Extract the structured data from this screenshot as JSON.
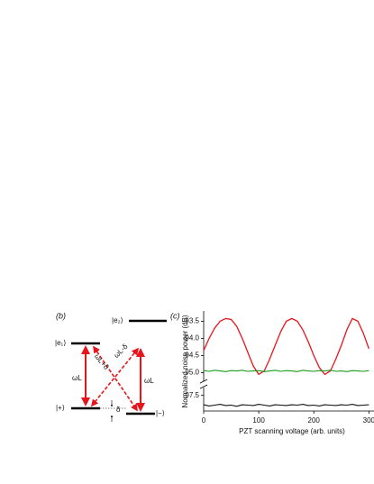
{
  "diagram": {
    "panel_label": "(b)",
    "levels": [
      "|e₂⟩",
      "|e₁⟩",
      "|+⟩",
      "|−⟩"
    ],
    "transitions": [
      "ωL+δ",
      "ωL-δ",
      "ωL",
      "ωL"
    ],
    "splitting": "δ"
  },
  "chart_data": [
    {
      "type": "line",
      "title": "(c)",
      "x": [
        0,
        10,
        20,
        30,
        40,
        50,
        60,
        70,
        80,
        90,
        100,
        110,
        120,
        130,
        140,
        150,
        160,
        170,
        180,
        190,
        200,
        210,
        220,
        230,
        240,
        250,
        260,
        270,
        280,
        290,
        300
      ],
      "ylim": [
        -95.25,
        -93.2
      ],
      "yticks": [
        -93.5,
        {
          "value": -94,
          "label": "-94.0"
        },
        -94.5,
        {
          "value": -95,
          "label": "-95.0"
        }
      ],
      "series": [
        {
          "color": "#e8141b",
          "values": [
            -94.35,
            -94.0,
            -93.7,
            -93.5,
            -93.42,
            -93.45,
            -93.65,
            -94.0,
            -94.4,
            -94.8,
            -95.05,
            -94.95,
            -94.6,
            -94.2,
            -93.8,
            -93.5,
            -93.42,
            -93.5,
            -93.75,
            -94.1,
            -94.5,
            -94.85,
            -95.05,
            -94.95,
            -94.6,
            -94.2,
            -93.75,
            -93.42,
            -93.5,
            -93.85,
            -94.3
          ]
        },
        {
          "color": "#1a9a1a",
          "values": [
            -94.94,
            -94.96,
            -94.93,
            -94.95,
            -94.97,
            -94.94,
            -94.95,
            -94.93,
            -94.96,
            -94.95,
            -94.94,
            -94.97,
            -94.95,
            -94.93,
            -94.96,
            -94.94,
            -94.95,
            -94.97,
            -94.93,
            -94.95,
            -94.96,
            -94.94,
            -94.95,
            -94.93,
            -94.96,
            -94.95,
            -94.97,
            -94.94,
            -94.95,
            -94.96,
            -94.94
          ]
        }
      ]
    },
    {
      "type": "line",
      "x": [
        0,
        10,
        20,
        30,
        40,
        50,
        60,
        70,
        80,
        90,
        100,
        110,
        120,
        130,
        140,
        150,
        160,
        170,
        180,
        190,
        200,
        210,
        220,
        230,
        240,
        250,
        260,
        270,
        280,
        290,
        300
      ],
      "xlim": [
        0,
        306
      ],
      "xticks": [
        0,
        100,
        200,
        300
      ],
      "ylim": [
        -97.9,
        -97.3
      ],
      "yticks": [
        -97.5
      ],
      "xlabel": "PZT scanning voltage (arb. units)",
      "ylabel": "Normalized noise power (dB)",
      "series": [
        {
          "color": "#111111",
          "values": [
            -97.74,
            -97.77,
            -97.75,
            -97.73,
            -97.76,
            -97.75,
            -97.78,
            -97.74,
            -97.75,
            -97.76,
            -97.73,
            -97.75,
            -97.77,
            -97.74,
            -97.75,
            -97.76,
            -97.74,
            -97.75,
            -97.73,
            -97.76,
            -97.75,
            -97.77,
            -97.74,
            -97.75,
            -97.76,
            -97.74,
            -97.75,
            -97.73,
            -97.76,
            -97.75,
            -97.74
          ]
        }
      ]
    }
  ]
}
